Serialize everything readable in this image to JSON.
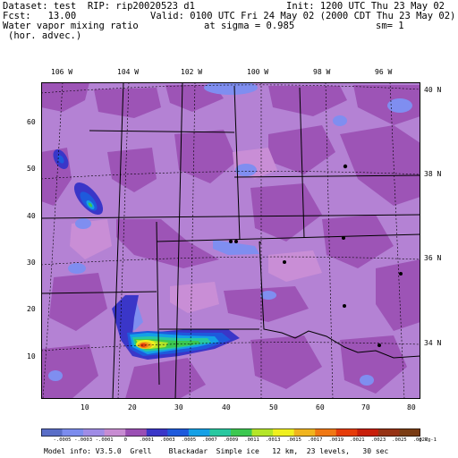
{
  "header": {
    "dataset_line": "Dataset: test  RIP: rip20020523 d1",
    "init": "Init: 1200 UTC Thu 23 May 02",
    "fcst": "Fcst:   13.00",
    "valid": "Valid: 0100 UTC Fri 24 May 02 (2000 CDT Thu 23 May 02)",
    "field": "Water vapor mixing ratio",
    "sigma": "at sigma = 0.985",
    "sm": "sm= 1",
    "sub": "(hor. advec.)"
  },
  "lon_labels": [
    "106 W",
    "104 W",
    "102 W",
    "100 W",
    "98 W",
    "96 W"
  ],
  "lat_labels": [
    "40 N",
    "38 N",
    "36 N",
    "34 N"
  ],
  "y_ticks": [
    "10",
    "20",
    "30",
    "40",
    "50",
    "60"
  ],
  "x_ticks": [
    "10",
    "20",
    "30",
    "40",
    "50",
    "60",
    "70",
    "80"
  ],
  "colorbar": {
    "unit": "g kg-1",
    "labels": [
      "-.0005",
      "-.0003",
      "-.0001",
      "0",
      ".0001",
      ".0003",
      ".0005",
      ".0007",
      ".0009",
      ".0011",
      ".0013",
      ".0015",
      ".0017",
      ".0019",
      ".0021",
      ".0023",
      ".0025",
      ".0027"
    ],
    "colors": [
      "#5a6ec8",
      "#7c8cee",
      "#a08ce6",
      "#c88cd2",
      "#9b4fb4",
      "#3a36c8",
      "#1e5adc",
      "#14a0e6",
      "#28c8a0",
      "#3cc850",
      "#b4e628",
      "#f0f01e",
      "#f0b41e",
      "#f07814",
      "#e63c0a",
      "#c81e0a",
      "#963214",
      "#7a3c14"
    ]
  },
  "footer": "Model info: V3.5.0  Grell    Blackadar  Simple ice   12 km,  23 levels,   30 sec"
}
